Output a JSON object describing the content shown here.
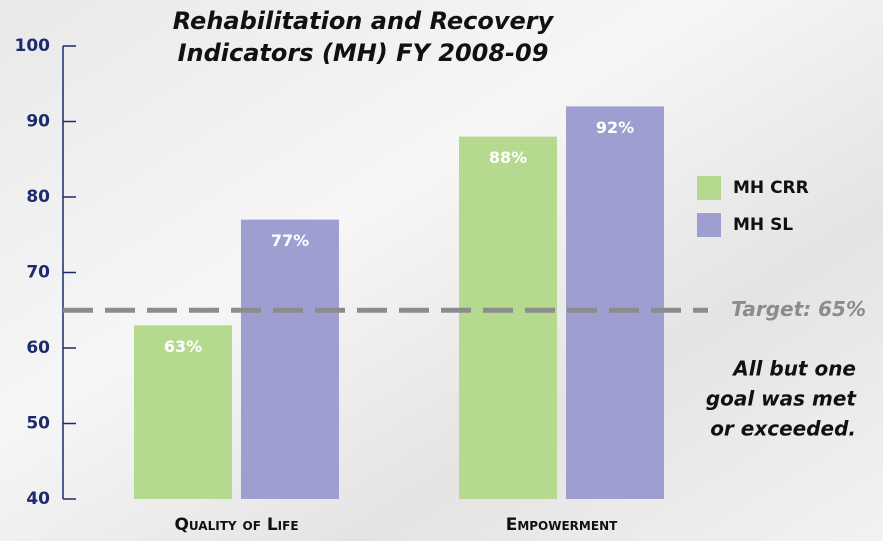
{
  "chart_data": {
    "type": "bar",
    "title": [
      "Rehabilitation and Recovery",
      "Indicators (MH) FY 2008-09"
    ],
    "categories": [
      "Quality of Life",
      "Empowerment"
    ],
    "series": [
      {
        "name": "MH CRR",
        "color": "#b4d98f",
        "values": [
          63,
          88
        ],
        "value_labels": [
          "63%",
          "88%"
        ]
      },
      {
        "name": "MH SL",
        "color": "#9e9ed0",
        "values": [
          77,
          92
        ],
        "value_labels": [
          "77%",
          "92%"
        ]
      }
    ],
    "ylim": [
      40,
      100
    ],
    "yticks": [
      40,
      50,
      60,
      70,
      80,
      90,
      100
    ],
    "target": 65,
    "target_label": "Target: 65%",
    "annotation": [
      "All but one",
      "goal was met",
      "or exceeded."
    ],
    "legend": "right"
  }
}
